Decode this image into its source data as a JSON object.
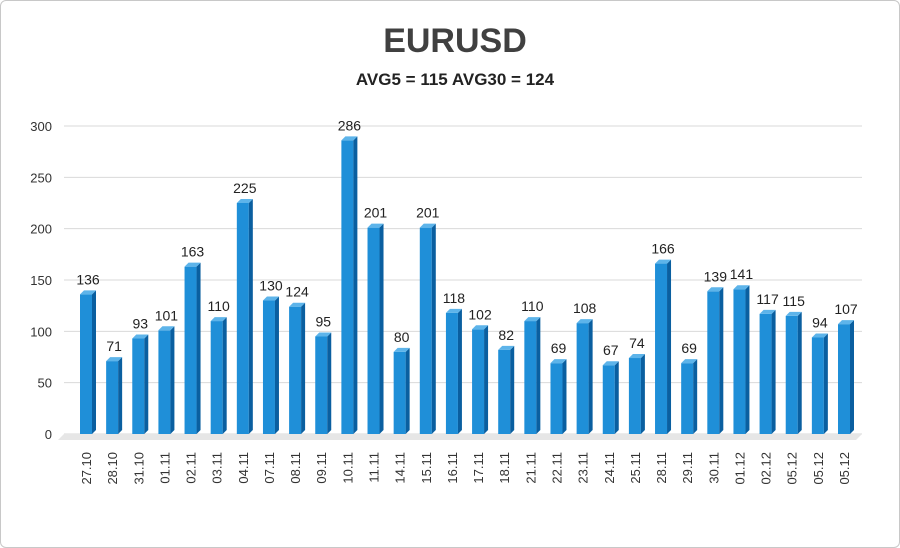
{
  "chart_data": {
    "type": "bar",
    "title": "EURUSD",
    "subtitle": "AVG5 = 115 AVG30 = 124",
    "xlabel": "",
    "ylabel": "",
    "ylim": [
      0,
      300
    ],
    "yticks": [
      0,
      50,
      100,
      150,
      200,
      250,
      300
    ],
    "grid": true,
    "legend": "none",
    "categories": [
      "27.10",
      "28.10",
      "31.10",
      "01.11",
      "02.11",
      "03.11",
      "04.11",
      "07.11",
      "08.11",
      "09.11",
      "10.11",
      "11.11",
      "14.11",
      "15.11",
      "16.11",
      "17.11",
      "18.11",
      "21.11",
      "22.11",
      "23.11",
      "24.11",
      "25.11",
      "28.11",
      "29.11",
      "30.11",
      "01.12",
      "02.12",
      "05.12",
      "05.12",
      "05.12"
    ],
    "values": [
      136,
      71,
      93,
      101,
      163,
      110,
      225,
      130,
      124,
      95,
      286,
      201,
      80,
      201,
      118,
      102,
      82,
      110,
      69,
      108,
      67,
      74,
      166,
      69,
      139,
      141,
      117,
      115,
      94,
      107
    ],
    "colors": {
      "bar": "#1f8fd8",
      "bar_side": "#0a5fa0",
      "bar_top": "#5db4ea",
      "grid": "#d9d9d9"
    }
  }
}
